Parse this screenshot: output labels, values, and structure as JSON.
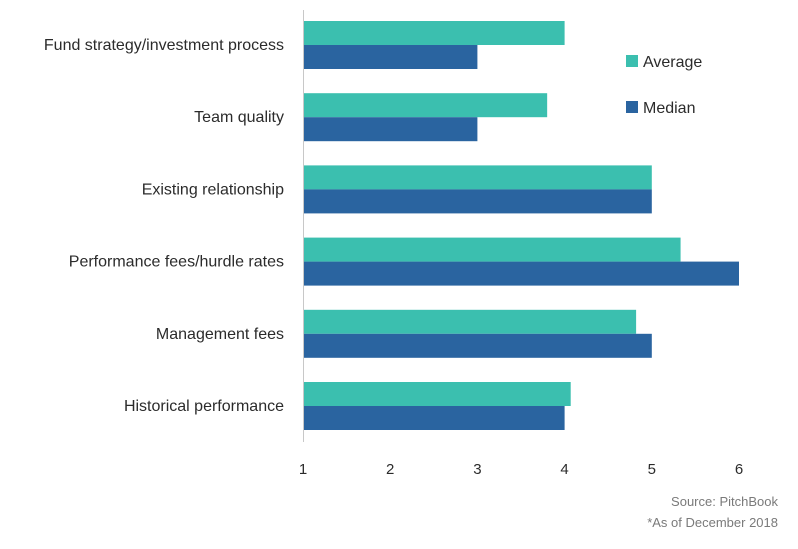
{
  "chart_data": {
    "type": "bar",
    "orientation": "horizontal",
    "categories": [
      "Fund strategy/investment process",
      "Team quality",
      "Existing relationship",
      "Performance fees/hurdle rates",
      "Management fees",
      "Historical performance"
    ],
    "series": [
      {
        "name": "Average",
        "color": "#3bbfaf",
        "values": [
          4.0,
          3.8,
          5.0,
          5.33,
          4.82,
          4.07
        ]
      },
      {
        "name": "Median",
        "color": "#2a64a0",
        "values": [
          3,
          3,
          5,
          6,
          5,
          4
        ]
      }
    ],
    "xlim": [
      1,
      6
    ],
    "xticks": [
      "1",
      "2",
      "3",
      "4",
      "5",
      "6"
    ],
    "grid": false,
    "legend_position": "top-right"
  },
  "footer": {
    "source": "Source: PitchBook",
    "note": "*As of December 2018"
  }
}
